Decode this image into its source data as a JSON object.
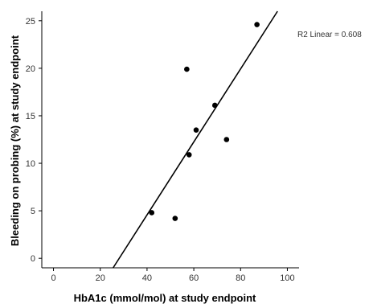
{
  "chart_data": {
    "type": "scatter",
    "title": "",
    "xlabel": "HbA1c (mmol/mol) at study endpoint",
    "ylabel": "Bleeding on probing (%) at study endpoint",
    "xlim": [
      -5,
      105
    ],
    "ylim": [
      -1,
      26
    ],
    "x_ticks": [
      0,
      20,
      40,
      60,
      80,
      100
    ],
    "x_tick_labels": [
      "0",
      "20",
      "40",
      "60",
      "80",
      "100"
    ],
    "y_ticks": [
      0,
      5,
      10,
      15,
      20,
      25
    ],
    "y_tick_labels": [
      "0",
      "5",
      "10",
      "15",
      "20",
      "25"
    ],
    "grid": false,
    "points": [
      {
        "x": 42,
        "y": 4.8
      },
      {
        "x": 52,
        "y": 4.2
      },
      {
        "x": 57,
        "y": 19.9
      },
      {
        "x": 58,
        "y": 10.9
      },
      {
        "x": 61,
        "y": 13.5
      },
      {
        "x": 69,
        "y": 16.1
      },
      {
        "x": 74,
        "y": 12.5
      },
      {
        "x": 87,
        "y": 24.6
      }
    ],
    "fit_line": {
      "type": "linear",
      "start": {
        "x": 25.5,
        "y": -1
      },
      "end": {
        "x": 95.8,
        "y": 26
      }
    },
    "annotation": "R2 Linear = 0.608",
    "colors": {
      "points": "#000000",
      "line": "#000000",
      "axis": "#000000"
    }
  }
}
